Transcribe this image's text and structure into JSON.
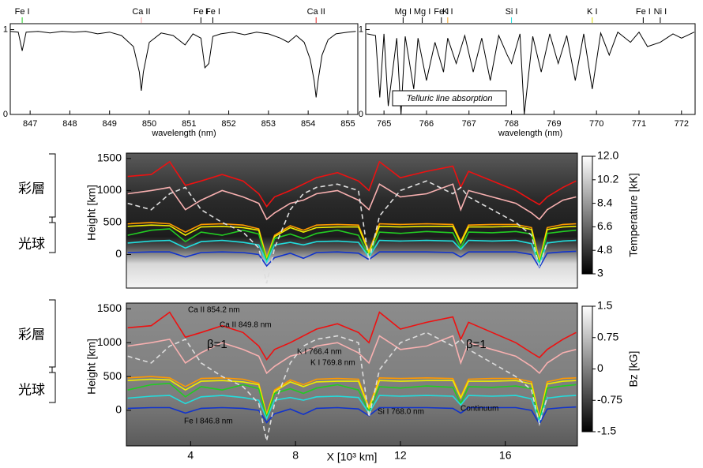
{
  "chart_data": [
    {
      "type": "line",
      "x_label": "wavelength (nm)",
      "xlim": [
        846.5,
        855.25
      ],
      "ylim": [
        0,
        1.07
      ],
      "xticks": [
        847,
        848,
        849,
        850,
        851,
        852,
        853,
        854,
        855
      ],
      "yticks": [
        0,
        1
      ],
      "annotations": [
        {
          "text": "Fe I",
          "x": 846.8,
          "color": "#22cc22"
        },
        {
          "text": "Ca II",
          "x": 849.8,
          "color": "#f4a0a0"
        },
        {
          "text": "Fe I",
          "x": 851.3,
          "color": "#000000"
        },
        {
          "text": "Fe I",
          "x": 851.6,
          "color": "#000000"
        },
        {
          "text": "Ca II",
          "x": 854.2,
          "color": "#e02020"
        }
      ],
      "series": [
        {
          "color": "#000000",
          "x": [
            846.5,
            846.7,
            846.8,
            846.9,
            847.2,
            847.5,
            847.8,
            848.1,
            848.4,
            848.7,
            849.0,
            849.3,
            849.6,
            849.75,
            849.8,
            849.85,
            850.0,
            850.3,
            850.6,
            850.9,
            851.1,
            851.3,
            851.4,
            851.5,
            851.6,
            851.8,
            852.1,
            852.4,
            852.7,
            853.0,
            853.3,
            853.5,
            853.7,
            853.9,
            854.05,
            854.15,
            854.2,
            854.25,
            854.35,
            854.5,
            854.7,
            855.0,
            855.2
          ],
          "values": [
            0.98,
            0.97,
            0.75,
            0.97,
            0.98,
            0.96,
            0.98,
            0.97,
            0.98,
            0.95,
            0.97,
            0.93,
            0.8,
            0.5,
            0.28,
            0.5,
            0.85,
            0.96,
            0.93,
            0.82,
            0.95,
            0.9,
            0.55,
            0.6,
            0.92,
            0.95,
            0.97,
            0.94,
            0.97,
            0.95,
            0.9,
            0.85,
            0.93,
            0.85,
            0.65,
            0.4,
            0.2,
            0.4,
            0.7,
            0.88,
            0.95,
            0.97,
            0.98
          ]
        }
      ]
    },
    {
      "type": "line",
      "x_label": "wavelength (nm)",
      "note": "Telluric line absorption",
      "xlim": [
        764.57,
        772.32
      ],
      "ylim": [
        0,
        1.07
      ],
      "xticks": [
        765,
        766,
        767,
        768,
        769,
        770,
        771,
        772
      ],
      "yticks": [
        0,
        1
      ],
      "annotations": [
        {
          "text": "Mg I",
          "x": 765.45,
          "color": "#000000"
        },
        {
          "text": "Mg I",
          "x": 765.9,
          "color": "#000000"
        },
        {
          "text": "Fe I",
          "x": 766.35,
          "color": "#000000"
        },
        {
          "text": "K I",
          "x": 766.5,
          "color": "#f0a020"
        },
        {
          "text": "Si I",
          "x": 768.0,
          "color": "#22dddd"
        },
        {
          "text": "K I",
          "x": 769.9,
          "color": "#d8d800"
        },
        {
          "text": "Fe I",
          "x": 771.1,
          "color": "#000000"
        },
        {
          "text": "Ni I",
          "x": 771.5,
          "color": "#000000"
        }
      ],
      "series": [
        {
          "color": "#000000",
          "x": [
            764.6,
            764.8,
            764.9,
            765.0,
            765.1,
            765.3,
            765.4,
            765.5,
            765.7,
            765.8,
            766.0,
            766.2,
            766.4,
            766.5,
            766.7,
            766.9,
            767.1,
            767.3,
            767.5,
            767.7,
            767.9,
            768.0,
            768.2,
            768.3,
            768.5,
            768.7,
            768.9,
            769.1,
            769.3,
            769.5,
            769.7,
            769.9,
            770.1,
            770.3,
            770.5,
            770.8,
            771.0,
            771.2,
            771.5,
            771.8,
            772.0,
            772.3
          ],
          "values": [
            0.95,
            0.93,
            0.2,
            0.95,
            0.1,
            0.9,
            0,
            0.92,
            0.3,
            0.9,
            0.4,
            0.85,
            0.5,
            0.9,
            0.6,
            0.93,
            0.5,
            0.9,
            0.4,
            0.93,
            0.7,
            0.6,
            0.95,
            0,
            0.92,
            0.5,
            0.95,
            0.6,
            0.93,
            0.4,
            0.95,
            0.3,
            0.96,
            0.7,
            0.97,
            0.85,
            0.97,
            0.8,
            0.85,
            0.95,
            0.9,
            0.97
          ]
        }
      ]
    },
    {
      "type": "map",
      "y_label": "Height [km]",
      "layer_labels": [
        "彩層",
        "光球"
      ],
      "xlim": [
        1.55,
        18.75
      ],
      "ylim": [
        -525,
        1585
      ],
      "yticks": [
        0,
        500,
        1000,
        1500
      ],
      "colorbar": {
        "label": "Temperature [kK]",
        "lim": [
          3,
          12
        ],
        "ticks": [
          3,
          4.8,
          6.6,
          8.4,
          10.2,
          {
            "value": 12,
            "label": "12.0"
          }
        ]
      },
      "x": [
        1.6,
        2.5,
        3.2,
        3.8,
        4.4,
        5.2,
        6.0,
        6.6,
        6.9,
        7.2,
        7.8,
        8.3,
        8.8,
        9.6,
        10.4,
        10.8,
        11.2,
        12.0,
        13.0,
        14.0,
        14.3,
        14.6,
        15.5,
        16.4,
        17.0,
        17.3,
        17.6,
        18.2,
        18.7
      ],
      "series": [
        {
          "color": "#ee1111",
          "values": [
            1220,
            1250,
            1450,
            1080,
            1150,
            1250,
            1150,
            950,
            750,
            900,
            1000,
            1100,
            1200,
            1280,
            1150,
            1000,
            1450,
            1200,
            1300,
            1380,
            1050,
            1300,
            1150,
            1000,
            850,
            780,
            900,
            1050,
            1150
          ]
        },
        {
          "color": "#f8b0b0",
          "values": [
            950,
            1000,
            1050,
            700,
            850,
            1000,
            900,
            800,
            550,
            650,
            800,
            850,
            950,
            1000,
            850,
            700,
            1100,
            900,
            950,
            1100,
            700,
            1000,
            900,
            800,
            650,
            550,
            700,
            850,
            900
          ]
        },
        {
          "color": "#ff9900",
          "values": [
            480,
            500,
            480,
            350,
            470,
            480,
            460,
            400,
            -50,
            300,
            450,
            380,
            460,
            470,
            460,
            50,
            480,
            470,
            480,
            470,
            200,
            460,
            470,
            470,
            420,
            -100,
            420,
            470,
            480
          ]
        },
        {
          "color": "#eeee00",
          "values": [
            440,
            460,
            450,
            300,
            430,
            440,
            420,
            380,
            -80,
            280,
            420,
            350,
            420,
            430,
            430,
            30,
            440,
            430,
            440,
            440,
            180,
            430,
            430,
            440,
            390,
            -120,
            390,
            430,
            440
          ]
        },
        {
          "color": "#22cc22",
          "values": [
            300,
            380,
            400,
            200,
            350,
            300,
            380,
            320,
            -100,
            250,
            320,
            250,
            330,
            380,
            300,
            -20,
            350,
            330,
            360,
            340,
            100,
            350,
            340,
            360,
            320,
            -150,
            330,
            360,
            380
          ]
        },
        {
          "color": "#22dddd",
          "values": [
            180,
            210,
            220,
            100,
            200,
            220,
            190,
            150,
            -120,
            150,
            190,
            150,
            200,
            210,
            190,
            -40,
            220,
            210,
            220,
            210,
            80,
            220,
            210,
            220,
            170,
            -160,
            180,
            210,
            220
          ]
        },
        {
          "color": "#1133cc",
          "values": [
            30,
            40,
            40,
            -40,
            30,
            40,
            30,
            0,
            -180,
            -50,
            20,
            -60,
            30,
            40,
            20,
            -80,
            40,
            40,
            40,
            30,
            -40,
            40,
            40,
            40,
            0,
            -200,
            20,
            40,
            50
          ]
        },
        {
          "color": "#dddddd",
          "dashed": true,
          "values": [
            800,
            700,
            950,
            1050,
            700,
            500,
            350,
            100,
            -450,
            100,
            700,
            950,
            1050,
            1100,
            1000,
            -100,
            600,
            1000,
            1150,
            950,
            1050,
            900,
            700,
            500,
            300,
            -200,
            200,
            null,
            null
          ]
        }
      ]
    },
    {
      "type": "map",
      "y_label": "Height [km]",
      "x_label": "X [10³ km]",
      "layer_labels": [
        "彩層",
        "光球"
      ],
      "annotations": [
        "β=1",
        "β=1"
      ],
      "xlim": [
        1.55,
        18.75
      ],
      "ylim": [
        -525,
        1585
      ],
      "xticks": [
        4,
        8,
        12,
        16
      ],
      "yticks": [
        0,
        500,
        1000,
        1500
      ],
      "colorbar": {
        "label": "Bz [kG]",
        "lim": [
          -1.5,
          1.5
        ],
        "ticks": [
          -1.5,
          -0.75,
          0,
          0.75,
          1.5
        ]
      },
      "x": [
        1.6,
        2.5,
        3.2,
        3.8,
        4.4,
        5.2,
        6.0,
        6.6,
        6.9,
        7.2,
        7.8,
        8.3,
        8.8,
        9.6,
        10.4,
        10.8,
        11.2,
        12.0,
        13.0,
        14.0,
        14.3,
        14.6,
        15.5,
        16.4,
        17.0,
        17.3,
        17.6,
        18.2,
        18.7
      ],
      "series": [
        {
          "name": "Ca II 854.2 nm",
          "color": "#ee1111",
          "values": [
            1220,
            1250,
            1450,
            1080,
            1150,
            1250,
            1150,
            950,
            750,
            900,
            1000,
            1100,
            1200,
            1280,
            1150,
            1000,
            1450,
            1200,
            1300,
            1380,
            1050,
            1300,
            1150,
            1000,
            850,
            780,
            900,
            1050,
            1150
          ]
        },
        {
          "name": "Ca II 849.8 nm",
          "color": "#f8b0b0",
          "values": [
            950,
            1000,
            1050,
            700,
            850,
            1000,
            900,
            800,
            550,
            650,
            800,
            850,
            950,
            1000,
            850,
            700,
            1100,
            900,
            950,
            1100,
            700,
            1000,
            900,
            800,
            650,
            550,
            700,
            850,
            900
          ]
        },
        {
          "name": "K I 766.4 nm",
          "color": "#ff9900",
          "values": [
            480,
            500,
            480,
            350,
            470,
            480,
            460,
            400,
            -50,
            300,
            450,
            380,
            460,
            470,
            460,
            50,
            480,
            470,
            480,
            470,
            200,
            460,
            470,
            470,
            420,
            -100,
            420,
            470,
            480
          ]
        },
        {
          "name": "K I 769.8 nm",
          "color": "#eeee00",
          "values": [
            440,
            460,
            450,
            300,
            430,
            440,
            420,
            380,
            -80,
            280,
            420,
            350,
            420,
            430,
            430,
            30,
            440,
            430,
            440,
            440,
            180,
            430,
            430,
            440,
            390,
            -120,
            390,
            430,
            440
          ]
        },
        {
          "name": "Fe I 846.8 nm",
          "color": "#22cc22",
          "values": [
            300,
            380,
            400,
            200,
            350,
            300,
            380,
            320,
            -100,
            250,
            320,
            250,
            330,
            380,
            300,
            -20,
            350,
            330,
            360,
            340,
            100,
            350,
            340,
            360,
            320,
            -150,
            330,
            360,
            380
          ]
        },
        {
          "name": "Si I 768.0 nm",
          "color": "#22dddd",
          "values": [
            180,
            210,
            220,
            100,
            200,
            220,
            190,
            150,
            -120,
            150,
            190,
            150,
            200,
            210,
            190,
            -40,
            220,
            210,
            220,
            210,
            80,
            220,
            210,
            220,
            170,
            -160,
            180,
            210,
            220
          ]
        },
        {
          "name": "Continuum",
          "color": "#1133cc",
          "values": [
            30,
            40,
            40,
            -40,
            30,
            40,
            30,
            0,
            -180,
            -50,
            20,
            -60,
            30,
            40,
            20,
            -80,
            40,
            40,
            40,
            30,
            -40,
            40,
            40,
            40,
            0,
            -200,
            20,
            40,
            50
          ]
        },
        {
          "color": "#dddddd",
          "dashed": true,
          "values": [
            800,
            700,
            950,
            1050,
            700,
            500,
            350,
            100,
            -450,
            100,
            700,
            950,
            1050,
            1100,
            1000,
            -100,
            600,
            1000,
            1150,
            950,
            1050,
            900,
            700,
            500,
            300,
            -200,
            200,
            null,
            null
          ]
        }
      ]
    }
  ]
}
